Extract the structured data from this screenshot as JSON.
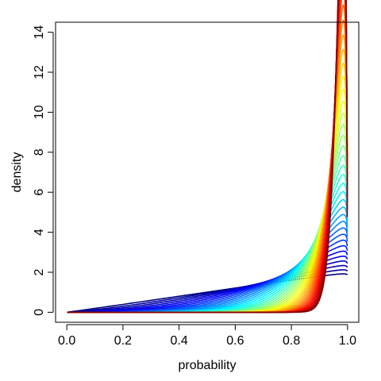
{
  "chart_data": {
    "type": "line",
    "title": "",
    "xlabel": "probability",
    "ylabel": "density",
    "xlim": [
      -0.04,
      1.04
    ],
    "ylim": [
      -0.5,
      14.5
    ],
    "x_ticks": [
      0.0,
      0.2,
      0.4,
      0.6,
      0.8,
      1.0
    ],
    "x_tick_labels": [
      "0.0",
      "0.2",
      "0.4",
      "0.6",
      "0.8",
      "1.0"
    ],
    "y_ticks": [
      0,
      2,
      4,
      6,
      8,
      10,
      12,
      14
    ],
    "y_tick_labels": [
      "0",
      "2",
      "4",
      "6",
      "8",
      "10",
      "12",
      "14"
    ],
    "grid": false,
    "legend": "none",
    "series_count": 40,
    "peak_x": 0.985,
    "peak_density_range": [
      1.2,
      13.8
    ],
    "color_ramp": [
      "#000080",
      "#0000ff",
      "#0080ff",
      "#00ffff",
      "#80ff80",
      "#ffff00",
      "#ff8000",
      "#ff0000",
      "#800000"
    ]
  }
}
